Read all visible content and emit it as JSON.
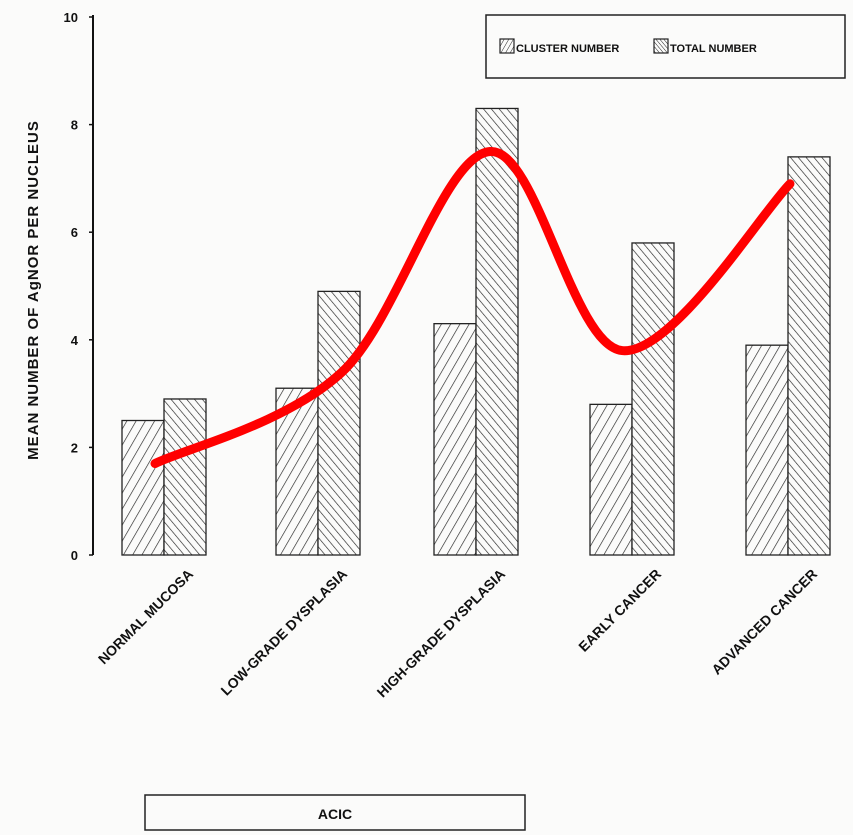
{
  "colors": {
    "background": "#fbfbfa",
    "ink": "#111111",
    "trend_line": "#ff0000"
  },
  "chart_data": {
    "type": "bar",
    "title": "",
    "ylabel": "MEAN NUMBER OF AgNOR PER NUCLEUS",
    "xlabel": "",
    "ylim": [
      0,
      10
    ],
    "yticks": [
      "0",
      "2",
      "4",
      "6",
      "8",
      "10"
    ],
    "categories": [
      "NORMAL MUCOSA",
      "LOW-GRADE DYSPLASIA",
      "HIGH-GRADE DYSPLASIA",
      "EARLY CANCER",
      "ADVANCED CANCER"
    ],
    "series": [
      {
        "name": "CLUSTER NUMBER",
        "values": [
          2.5,
          3.1,
          4.3,
          2.8,
          3.9
        ],
        "pattern": "forward-hatch"
      },
      {
        "name": "TOTAL NUMBER",
        "values": [
          2.9,
          4.9,
          8.3,
          5.8,
          7.4
        ],
        "pattern": "back-hatch"
      }
    ],
    "legend_position": "top-right",
    "group_label": "ACIC",
    "trend_line": {
      "color": "#ff0000",
      "values": [
        1.7,
        3.4,
        7.5,
        3.8,
        6.9
      ]
    }
  }
}
